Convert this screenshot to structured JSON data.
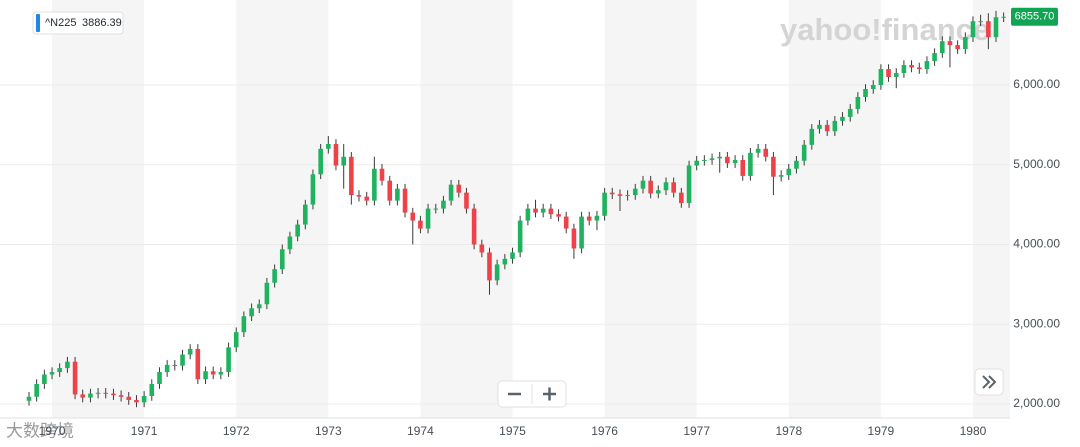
{
  "chart_data": {
    "type": "candlestick",
    "watermark": "yahoo!finance",
    "corner_text": "大数跨境",
    "series_name": "^N225",
    "legend_value": 3886.39,
    "last_price_label": "6855.70",
    "up_color": "#1fb25f",
    "down_color": "#ef4148",
    "shade_color": "#f5f5f5",
    "label_color": "#10a552",
    "legend_bar_color": "#1e88e5",
    "grid": true,
    "xlim": [
      1969.435,
      1980.402
    ],
    "xticks": [
      1970,
      1971,
      1972,
      1973,
      1974,
      1975,
      1976,
      1977,
      1978,
      1979,
      1980
    ],
    "ylim": [
      1824,
      7066
    ],
    "yticks": [
      {
        "value": 2000,
        "label": "2,000.00"
      },
      {
        "value": 3000,
        "label": "3,000.00"
      },
      {
        "value": 4000,
        "label": "4,000.00"
      },
      {
        "value": 5000,
        "label": "5,000.00"
      },
      {
        "value": 6000,
        "label": "6,000.00"
      }
    ],
    "x": [
      1969.75,
      1969.833,
      1969.917,
      1970,
      1970.083,
      1970.167,
      1970.25,
      1970.333,
      1970.417,
      1970.5,
      1970.583,
      1970.667,
      1970.75,
      1970.833,
      1970.917,
      1971,
      1971.083,
      1971.167,
      1971.25,
      1971.333,
      1971.417,
      1971.5,
      1971.583,
      1971.667,
      1971.75,
      1971.833,
      1971.917,
      1972,
      1972.083,
      1972.167,
      1972.25,
      1972.333,
      1972.417,
      1972.5,
      1972.583,
      1972.667,
      1972.75,
      1972.833,
      1972.917,
      1973,
      1973.083,
      1973.167,
      1973.25,
      1973.333,
      1973.417,
      1973.5,
      1973.583,
      1973.667,
      1973.75,
      1973.833,
      1973.917,
      1974,
      1974.083,
      1974.167,
      1974.25,
      1974.333,
      1974.417,
      1974.5,
      1974.583,
      1974.667,
      1974.75,
      1974.833,
      1974.917,
      1975,
      1975.083,
      1975.167,
      1975.25,
      1975.333,
      1975.417,
      1975.5,
      1975.583,
      1975.667,
      1975.75,
      1975.833,
      1975.917,
      1976,
      1976.083,
      1976.167,
      1976.25,
      1976.333,
      1976.417,
      1976.5,
      1976.583,
      1976.667,
      1976.75,
      1976.833,
      1976.917,
      1977,
      1977.083,
      1977.167,
      1977.25,
      1977.333,
      1977.417,
      1977.5,
      1977.583,
      1977.667,
      1977.75,
      1977.833,
      1977.917,
      1978,
      1978.083,
      1978.167,
      1978.25,
      1978.333,
      1978.417,
      1978.5,
      1978.583,
      1978.667,
      1978.75,
      1978.833,
      1978.917,
      1979,
      1979.083,
      1979.167,
      1979.25,
      1979.333,
      1979.417,
      1979.5,
      1979.583,
      1979.667,
      1979.75,
      1979.833,
      1979.917,
      1980,
      1980.083,
      1980.167,
      1980.25,
      1980.333
    ],
    "open": [
      2040,
      2090,
      2250,
      2370,
      2400,
      2450,
      2530,
      2120,
      2080,
      2130,
      2140,
      2130,
      2110,
      2090,
      2050,
      2020,
      2100,
      2250,
      2400,
      2490,
      2480,
      2620,
      2690,
      2310,
      2410,
      2370,
      2400,
      2710,
      2900,
      3100,
      3200,
      3250,
      3520,
      3690,
      3940,
      4100,
      4250,
      4500,
      4880,
      5200,
      5260,
      4990,
      5100,
      4620,
      4600,
      4550,
      4950,
      4800,
      4550,
      4700,
      4400,
      4300,
      4200,
      4450,
      4450,
      4550,
      4750,
      4650,
      4450,
      4000,
      3900,
      3550,
      3750,
      3820,
      3900,
      4300,
      4450,
      4400,
      4450,
      4380,
      4350,
      4200,
      3950,
      4350,
      4300,
      4360,
      4650,
      4630,
      4610,
      4620,
      4700,
      4800,
      4640,
      4680,
      4780,
      4650,
      4520,
      4990,
      5050,
      5060,
      5080,
      5100,
      5020,
      5060,
      4860,
      5150,
      5200,
      5100,
      4850,
      4870,
      4950,
      5050,
      5250,
      5450,
      5500,
      5420,
      5550,
      5600,
      5700,
      5850,
      5950,
      6000,
      6200,
      6100,
      6150,
      6250,
      6220,
      6200,
      6300,
      6400,
      6550,
      6500,
      6450,
      6600,
      6800,
      6800,
      6600,
      6850
    ],
    "high": [
      2150,
      2310,
      2430,
      2460,
      2510,
      2590,
      2590,
      2180,
      2190,
      2200,
      2200,
      2190,
      2170,
      2150,
      2110,
      2160,
      2310,
      2460,
      2550,
      2550,
      2680,
      2750,
      2750,
      2470,
      2470,
      2460,
      2770,
      2960,
      3160,
      3260,
      3310,
      3580,
      3750,
      4000,
      4160,
      4310,
      4560,
      4940,
      5260,
      5360,
      5320,
      5260,
      5160,
      4680,
      4660,
      5100,
      5010,
      4860,
      4760,
      4760,
      4460,
      4360,
      4510,
      4510,
      4610,
      4810,
      4810,
      4710,
      4510,
      4060,
      3960,
      3810,
      3880,
      3960,
      4360,
      4510,
      4560,
      4510,
      4510,
      4440,
      4410,
      4260,
      4410,
      4410,
      4420,
      4710,
      4710,
      4690,
      4680,
      4760,
      4860,
      4860,
      4740,
      4840,
      4840,
      4710,
      5050,
      5110,
      5120,
      5140,
      5160,
      5160,
      5120,
      5120,
      5210,
      5260,
      5260,
      5160,
      4930,
      5010,
      5110,
      5310,
      5510,
      5560,
      5560,
      5610,
      5660,
      5760,
      5910,
      6010,
      6060,
      6260,
      6260,
      6210,
      6310,
      6310,
      6280,
      6360,
      6460,
      6610,
      6610,
      6560,
      6660,
      6860,
      6880,
      6900,
      6930,
      6910
    ],
    "low": [
      1980,
      2030,
      2190,
      2310,
      2340,
      2390,
      2060,
      2020,
      2020,
      2070,
      2070,
      2050,
      2030,
      1990,
      1960,
      1960,
      2040,
      2190,
      2340,
      2420,
      2420,
      2560,
      2250,
      2250,
      2310,
      2310,
      2340,
      2650,
      2840,
      3040,
      3140,
      3190,
      3460,
      3630,
      3880,
      4040,
      4190,
      4440,
      4820,
      5140,
      4930,
      4700,
      4500,
      4540,
      4490,
      4490,
      4740,
      4490,
      4490,
      4340,
      4000,
      4140,
      4140,
      4390,
      4390,
      4490,
      4590,
      4390,
      3940,
      3840,
      3370,
      3490,
      3690,
      3760,
      3840,
      4240,
      4340,
      4340,
      4320,
      4290,
      4140,
      3820,
      3890,
      4240,
      4180,
      4300,
      4570,
      4420,
      4550,
      4560,
      4640,
      4580,
      4580,
      4620,
      4590,
      4460,
      4460,
      4930,
      4990,
      5000,
      4900,
      4960,
      4960,
      4800,
      4800,
      5090,
      5040,
      4620,
      4790,
      4810,
      4890,
      4990,
      5190,
      5390,
      5360,
      5360,
      5490,
      5540,
      5640,
      5790,
      5890,
      5940,
      6040,
      5960,
      6090,
      6160,
      6140,
      6140,
      6240,
      6340,
      6220,
      6390,
      6390,
      6540,
      6740,
      6450,
      6540,
      6790
    ],
    "close": [
      2090,
      2250,
      2370,
      2400,
      2450,
      2530,
      2120,
      2080,
      2130,
      2140,
      2130,
      2110,
      2090,
      2050,
      2020,
      2100,
      2250,
      2400,
      2490,
      2480,
      2620,
      2690,
      2310,
      2410,
      2370,
      2400,
      2710,
      2900,
      3100,
      3200,
      3250,
      3520,
      3690,
      3940,
      4100,
      4250,
      4500,
      4880,
      5200,
      5260,
      4990,
      5100,
      4620,
      4600,
      4550,
      4950,
      4800,
      4550,
      4700,
      4400,
      4300,
      4200,
      4450,
      4450,
      4550,
      4750,
      4650,
      4450,
      4000,
      3900,
      3550,
      3750,
      3820,
      3900,
      4300,
      4450,
      4400,
      4450,
      4380,
      4350,
      4200,
      3950,
      4350,
      4300,
      4360,
      4650,
      4630,
      4610,
      4620,
      4700,
      4800,
      4640,
      4680,
      4780,
      4650,
      4520,
      4990,
      5050,
      5060,
      5080,
      5100,
      5020,
      5060,
      4860,
      5150,
      5200,
      5100,
      4850,
      4870,
      4950,
      5050,
      5250,
      5450,
      5500,
      5420,
      5550,
      5600,
      5700,
      5850,
      5950,
      6000,
      6200,
      6100,
      6150,
      6250,
      6220,
      6200,
      6300,
      6400,
      6550,
      6500,
      6450,
      6600,
      6800,
      6800,
      6600,
      6850,
      6855.7
    ]
  }
}
